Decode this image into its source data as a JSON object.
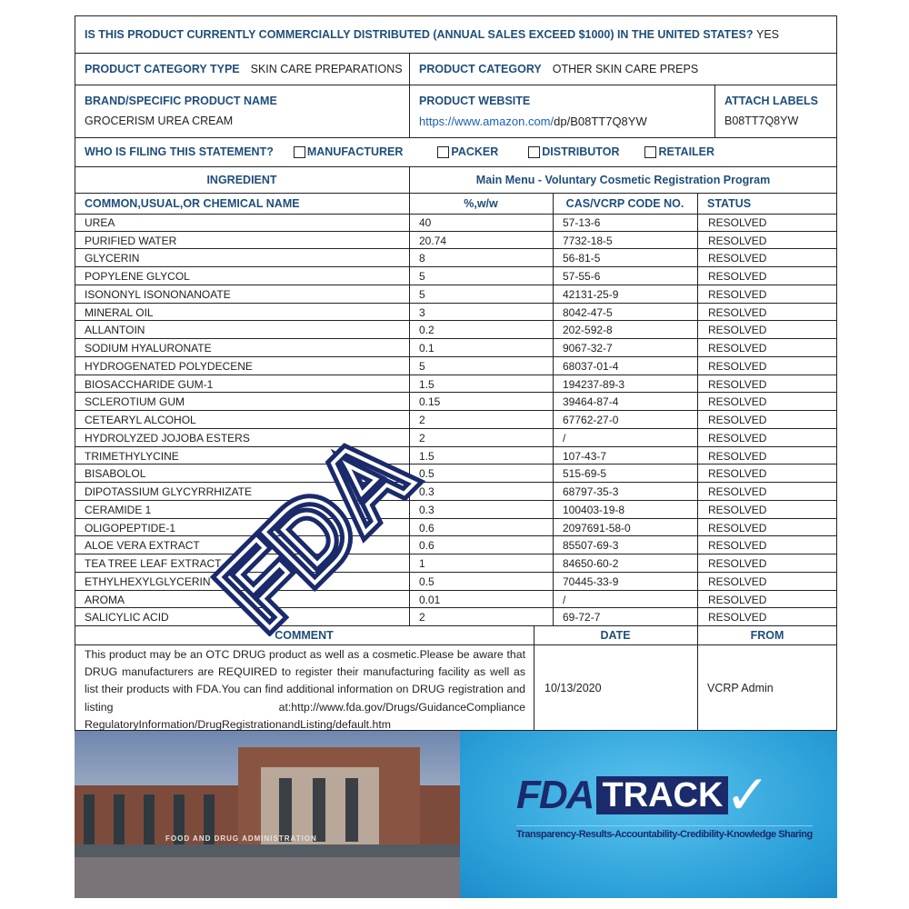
{
  "question": {
    "text": "IS THIS PRODUCT CURRENTLY COMMERCIALLY DISTRIBUTED (ANNUAL SALES EXCEED $1000) IN THE UNITED STATES?",
    "answer": "YES"
  },
  "category_type": {
    "label": "PRODUCT CATEGORY TYPE",
    "value": "SKIN CARE PREPARATIONS"
  },
  "category": {
    "label": "PRODUCT CATEGORY",
    "value": "OTHER SKIN CARE PREPS"
  },
  "brand": {
    "label": "BRAND/SPECIFIC PRODUCT NAME",
    "value": "GROCERISM UREA CREAM"
  },
  "website": {
    "label": "PRODUCT WEBSITE",
    "link": "https://www.amazon.com/",
    "rest": "dp/B08TT7Q8YW"
  },
  "labels": {
    "label": "ATTACH LABELS",
    "value": "B08TT7Q8YW"
  },
  "filing": {
    "label": "WHO IS FILING THIS STATEMENT?",
    "options": [
      "MANUFACTURER",
      "PACKER",
      "DISTRIBUTOR",
      "RETAILER"
    ]
  },
  "ingredient_header": "INGREDIENT",
  "program_header": "Main Menu - Voluntary Cosmetic Registration Program",
  "columns": [
    "COMMON,USUAL,OR CHEMICAL NAME",
    "%,w/w",
    "CAS/VCRP CODE NO.",
    "STATUS"
  ],
  "rows": [
    [
      "UREA",
      "40",
      "57-13-6",
      "RESOLVED"
    ],
    [
      "PURIFIED WATER",
      "20.74",
      "7732-18-5",
      "RESOLVED"
    ],
    [
      "GLYCERIN",
      "8",
      "56-81-5",
      "RESOLVED"
    ],
    [
      "POPYLENE GLYCOL",
      "5",
      "57-55-6",
      "RESOLVED"
    ],
    [
      "ISONONYL ISONONANOATE",
      "5",
      "42131-25-9",
      "RESOLVED"
    ],
    [
      "MINERAL OIL",
      "3",
      "8042-47-5",
      "RESOLVED"
    ],
    [
      "ALLANTOIN",
      "0.2",
      "202-592-8",
      "RESOLVED"
    ],
    [
      "SODIUM HYALURONATE",
      "0.1",
      "9067-32-7",
      "RESOLVED"
    ],
    [
      "HYDROGENATED POLYDECENE",
      "5",
      "68037-01-4",
      "RESOLVED"
    ],
    [
      "BIOSACCHARIDE GUM-1",
      "1.5",
      "194237-89-3",
      "RESOLVED"
    ],
    [
      "SCLEROTIUM GUM",
      "0.15",
      "39464-87-4",
      "RESOLVED"
    ],
    [
      "CETEARYL ALCOHOL",
      "2",
      "67762-27-0",
      "RESOLVED"
    ],
    [
      "HYDROLYZED JOJOBA ESTERS",
      "2",
      "/",
      "RESOLVED"
    ],
    [
      "TRIMETHYLYCINE",
      "1.5",
      "107-43-7",
      "RESOLVED"
    ],
    [
      "BISABOLOL",
      "0.5",
      "515-69-5",
      "RESOLVED"
    ],
    [
      "DIPOTASSIUM GLYCYRRHIZATE",
      "0.3",
      "68797-35-3",
      "RESOLVED"
    ],
    [
      "CERAMIDE 1",
      "0.3",
      "100403-19-8",
      "RESOLVED"
    ],
    [
      "OLIGOPEPTIDE-1",
      "0.6",
      "2097691-58-0",
      "RESOLVED"
    ],
    [
      "ALOE VERA EXTRACT",
      "0.6",
      "85507-69-3",
      "RESOLVED"
    ],
    [
      "TEA TREE LEAF EXTRACT",
      "1",
      "84650-60-2",
      "RESOLVED"
    ],
    [
      "ETHYLHEXYLGLYCERIN",
      "0.5",
      "70445-33-9",
      "RESOLVED"
    ],
    [
      "AROMA",
      "0.01",
      "/",
      "RESOLVED"
    ],
    [
      "SALICYLIC ACID",
      "2",
      "69-72-7",
      "RESOLVED"
    ]
  ],
  "comment": {
    "headers": [
      "COMMENT",
      "DATE",
      "FROM"
    ],
    "text": "This product may be an OTC DRUG product as well as a cosmetic.Please be aware that DRUG manufacturers are REQUIRED to register their manufacturing facility as well as list their products with FDA.You can find additional information on DRUG registration and listing at:http://www.fda.gov/Drugs/GuidanceCompliance RegulatoryInformation/DrugRegistrationandListing/default.htm",
    "date": "10/13/2020",
    "from": "VCRP Admin"
  },
  "watermark": "FDA",
  "building_sign": "FOOD AND DRUG ADMINISTRATION",
  "track": {
    "logo_fda": "FDA",
    "logo_track": "TRACK",
    "tagline": "Transparency-Results-Accountability-Credibility-Knowledge Sharing"
  },
  "colors": {
    "heading": "#1f4e79",
    "link": "#1a5fb4",
    "fda_navy": "#1b2a6b",
    "track_bg": "#2fa8e0"
  }
}
